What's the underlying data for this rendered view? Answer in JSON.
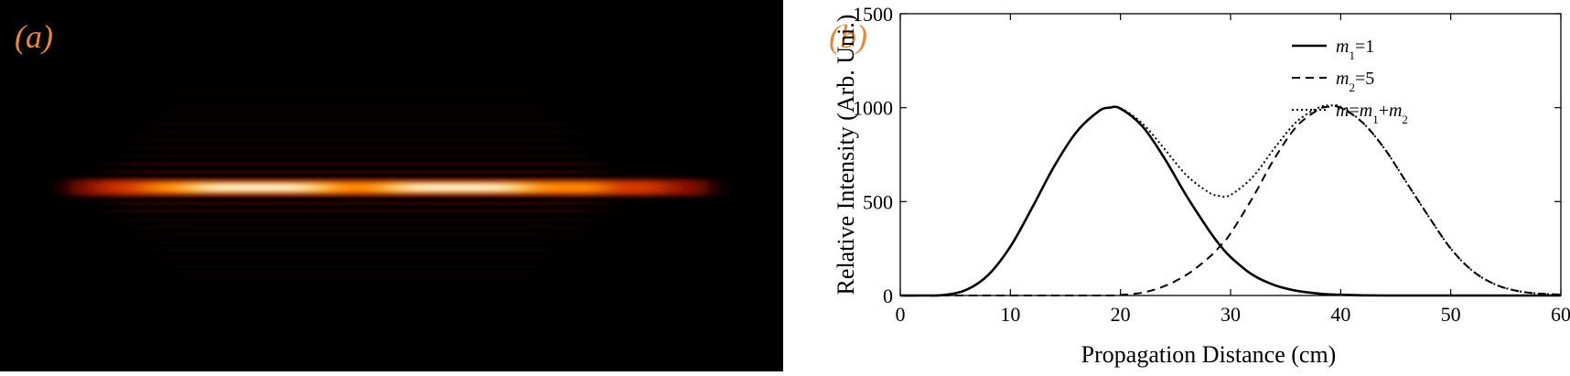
{
  "panel_a": {
    "label": "(a)",
    "label_color": "#e8873a",
    "colormap": [
      "#000000",
      "#3a0000",
      "#8b0a00",
      "#d43800",
      "#ff8a00",
      "#ffd24a",
      "#ffffd8"
    ]
  },
  "chart_data": {
    "type": "line",
    "panel_label": "(b)",
    "panel_label_color": "#e8873a",
    "xlabel": "Propagation Distance (cm)",
    "ylabel": "Relative Intensity (Arb. Uni.)",
    "xlim": [
      0,
      60
    ],
    "ylim": [
      0,
      1500
    ],
    "xticks": [
      0,
      10,
      20,
      30,
      40,
      50,
      60
    ],
    "yticks": [
      0,
      500,
      1000,
      1500
    ],
    "grid": false,
    "legend_position": "top-right",
    "x": [
      0,
      2,
      4,
      6,
      8,
      10,
      12,
      14,
      16,
      18,
      19,
      20,
      22,
      24,
      26,
      28,
      29,
      30,
      32,
      34,
      36,
      38,
      39,
      40,
      42,
      44,
      46,
      48,
      50,
      52,
      54,
      56,
      58,
      60
    ],
    "series": [
      {
        "name_base": "m",
        "name_sub": "1",
        "name_rest": "=1",
        "style": "solid",
        "values": [
          0,
          0,
          3,
          30,
          110,
          260,
          470,
          690,
          870,
          980,
          1000,
          995,
          900,
          730,
          530,
          350,
          270,
          205,
          110,
          55,
          25,
          10,
          6,
          4,
          1,
          0,
          0,
          0,
          0,
          0,
          0,
          0,
          0,
          0
        ]
      },
      {
        "name_base": "m",
        "name_sub": "2",
        "name_rest": "=5",
        "style": "dashed",
        "values": [
          0,
          0,
          0,
          0,
          0,
          0,
          0,
          0,
          0,
          0,
          0,
          3,
          15,
          50,
          110,
          200,
          260,
          330,
          520,
          730,
          900,
          990,
          1005,
          1000,
          920,
          780,
          600,
          420,
          250,
          130,
          60,
          25,
          10,
          5
        ]
      },
      {
        "name_base": "m",
        "name_sub": "",
        "name_rest": "=m",
        "name_sub2": "1",
        "name_mid": "+m",
        "name_sub3": "2",
        "style": "dotted",
        "values": [
          0,
          0,
          3,
          30,
          110,
          260,
          470,
          690,
          870,
          980,
          1000,
          998,
          915,
          780,
          640,
          550,
          530,
          535,
          630,
          785,
          925,
          1000,
          1011,
          1004,
          921,
          780,
          600,
          420,
          250,
          130,
          60,
          25,
          10,
          5
        ]
      }
    ]
  }
}
